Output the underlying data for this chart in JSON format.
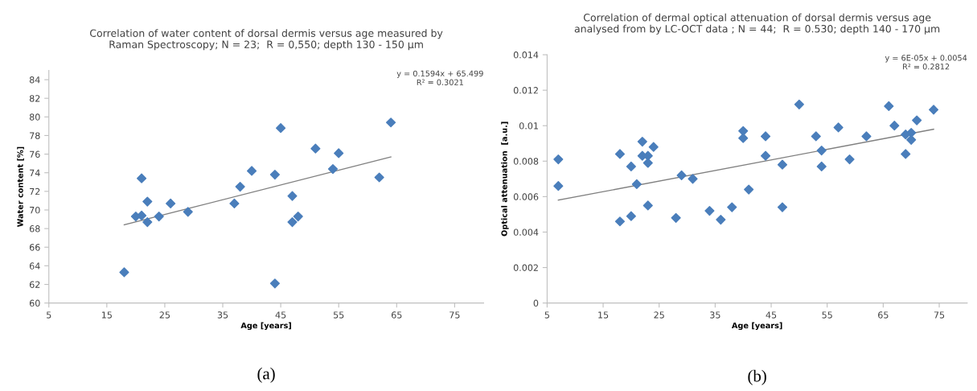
{
  "chart_data": [
    {
      "type": "scatter",
      "title": "Correlation of water content of dorsal dermis versus age measured by\nRaman Spectroscopy; N = 23;  R = 0,550; depth 130 - 150 µm",
      "xlabel": "Age [years]",
      "ylabel": "Water content [%]",
      "xlim": [
        5,
        80
      ],
      "xticks": [
        5,
        15,
        25,
        35,
        45,
        55,
        65,
        75
      ],
      "ylim": [
        60,
        85
      ],
      "yticks": [
        60,
        62,
        64,
        66,
        68,
        70,
        72,
        74,
        76,
        78,
        80,
        82,
        84
      ],
      "marker": "diamond",
      "grid": false,
      "annotations": [
        "y = 0.1594x + 65.499\nR² = 0.3021",
        "(a)"
      ],
      "series": [
        {
          "color": "#4a7ebb",
          "x": [
            18,
            20,
            21,
            21,
            22,
            22,
            24,
            26,
            29,
            37,
            38,
            40,
            44,
            44,
            45,
            47,
            47,
            48,
            51,
            55,
            54,
            62,
            64
          ],
          "values": [
            63.3,
            69.3,
            69.4,
            73.4,
            70.9,
            68.7,
            69.3,
            70.7,
            69.8,
            70.7,
            72.5,
            74.2,
            73.8,
            62.1,
            78.8,
            71.5,
            68.7,
            69.3,
            76.6,
            76.1,
            74.4,
            73.5,
            79.4
          ]
        },
        {
          "type": "line",
          "color": "#808080",
          "marker": "none",
          "x": [
            18,
            64
          ],
          "values": [
            68.4,
            75.7
          ]
        }
      ]
    },
    {
      "type": "scatter",
      "title": "Correlation of dermal optical attenuation of dorsal dermis versus age\nanalysed from by LC-OCT data ; N = 44;  R = 0.530; depth 140 - 170 µm",
      "xlabel": "Age [years]",
      "ylabel": "Optical attenuation  [a.u.]",
      "xlim": [
        5,
        80
      ],
      "xticks": [
        5,
        15,
        25,
        35,
        45,
        55,
        65,
        75
      ],
      "ylim": [
        0,
        0.014
      ],
      "yticks": [
        0,
        0.002,
        0.004,
        0.006,
        0.008,
        0.01,
        0.012,
        0.014
      ],
      "marker": "diamond",
      "grid": false,
      "annotations": [
        "y = 6E-05x + 0.0054\nR² = 0.2812",
        "(b)"
      ],
      "series": [
        {
          "color": "#4a7ebb",
          "x": [
            7,
            7,
            18,
            18,
            20,
            20,
            21,
            22,
            22,
            23,
            23,
            23,
            24,
            28,
            29,
            31,
            34,
            36,
            38,
            40,
            40,
            41,
            44,
            44,
            47,
            47,
            50,
            53,
            54,
            54,
            57,
            59,
            62,
            66,
            67,
            69,
            69,
            70,
            70,
            71,
            74
          ],
          "values": [
            0.0081,
            0.0066,
            0.0084,
            0.0046,
            0.0077,
            0.0049,
            0.0067,
            0.0091,
            0.0083,
            0.0083,
            0.0079,
            0.0055,
            0.0088,
            0.0048,
            0.0072,
            0.007,
            0.0052,
            0.0047,
            0.0054,
            0.0097,
            0.0093,
            0.0064,
            0.0094,
            0.0083,
            0.0078,
            0.0054,
            0.0112,
            0.0094,
            0.0086,
            0.0077,
            0.0099,
            0.0081,
            0.0094,
            0.0111,
            0.01,
            0.0095,
            0.0084,
            0.0096,
            0.0092,
            0.0103,
            0.0109
          ]
        },
        {
          "type": "line",
          "color": "#808080",
          "marker": "none",
          "x": [
            7,
            74
          ],
          "values": [
            0.0058,
            0.0098
          ]
        }
      ]
    }
  ]
}
